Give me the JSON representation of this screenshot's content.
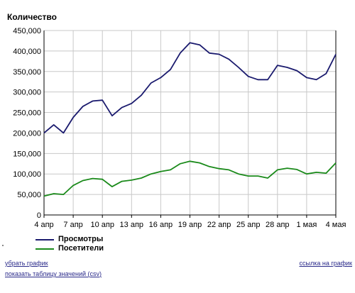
{
  "chart_data": {
    "type": "line",
    "title": "",
    "ylabel": "Количество",
    "xlabel": "",
    "ylim": [
      0,
      450000
    ],
    "yticks": [
      0,
      50000,
      100000,
      150000,
      200000,
      250000,
      300000,
      350000,
      400000,
      450000
    ],
    "ytick_labels": [
      "0",
      "50,000",
      "100,000",
      "150,000",
      "200,000",
      "250,000",
      "300,000",
      "350,000",
      "400,000",
      "450,000"
    ],
    "categories": [
      "4 апр",
      "5 апр",
      "6 апр",
      "7 апр",
      "8 апр",
      "9 апр",
      "10 апр",
      "11 апр",
      "12 апр",
      "13 апр",
      "14 апр",
      "15 апр",
      "16 апр",
      "17 апр",
      "18 апр",
      "19 апр",
      "20 апр",
      "21 апр",
      "22 апр",
      "23 апр",
      "24 апр",
      "25 апр",
      "26 апр",
      "27 апр",
      "28 апр",
      "29 апр",
      "30 апр",
      "1 мая",
      "2 мая",
      "3 мая",
      "4 мая"
    ],
    "xtick_labels": [
      {
        "index": 0,
        "label": "4 апр"
      },
      {
        "index": 3,
        "label": "7 апр"
      },
      {
        "index": 6,
        "label": "10 апр"
      },
      {
        "index": 9,
        "label": "13 апр"
      },
      {
        "index": 12,
        "label": "16 апр"
      },
      {
        "index": 15,
        "label": "19 апр"
      },
      {
        "index": 18,
        "label": "22 апр"
      },
      {
        "index": 21,
        "label": "25 апр"
      },
      {
        "index": 24,
        "label": "28 апр"
      },
      {
        "index": 27,
        "label": "1 мая"
      },
      {
        "index": 30,
        "label": "4 мая"
      }
    ],
    "grid": true,
    "legend_position": "bottom-left",
    "series": [
      {
        "name": "Просмотры",
        "color": "#1a1a6e",
        "values": [
          200000,
          220000,
          200000,
          238000,
          265000,
          278000,
          280000,
          242000,
          262000,
          272000,
          292000,
          322000,
          335000,
          355000,
          395000,
          420000,
          415000,
          395000,
          392000,
          380000,
          360000,
          338000,
          330000,
          330000,
          365000,
          360000,
          352000,
          335000,
          330000,
          345000,
          392000
        ]
      },
      {
        "name": "Посетители",
        "color": "#1a8a1a",
        "values": [
          46000,
          52000,
          50000,
          72000,
          84000,
          89000,
          87000,
          69000,
          82000,
          85000,
          90000,
          100000,
          106000,
          110000,
          125000,
          131000,
          127000,
          118000,
          113000,
          110000,
          100000,
          95000,
          95000,
          90000,
          110000,
          114000,
          111000,
          100000,
          104000,
          102000,
          127000
        ]
      }
    ]
  },
  "links": {
    "remove_chart": "убрать график",
    "chart_link": "ссылка на график",
    "show_table_prefix": "показать таблицу значений (",
    "show_table_csv": "csv",
    "show_table_suffix": ")"
  }
}
